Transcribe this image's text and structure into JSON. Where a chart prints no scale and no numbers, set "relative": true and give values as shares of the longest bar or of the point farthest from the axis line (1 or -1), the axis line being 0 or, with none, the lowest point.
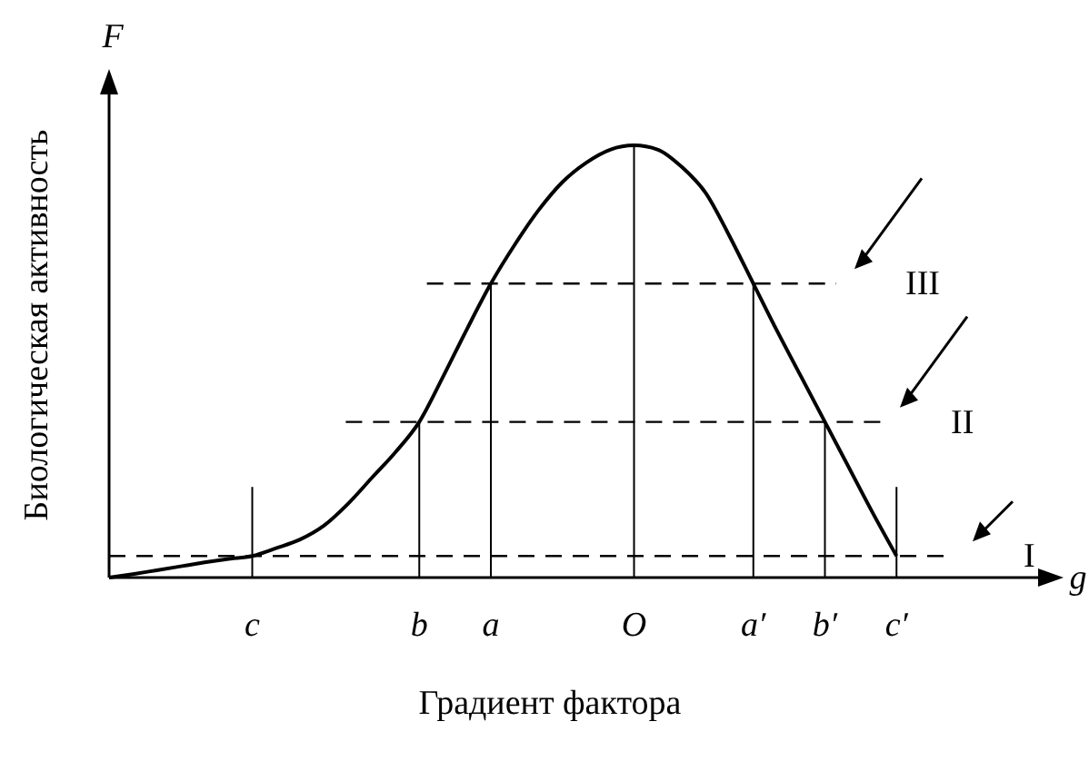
{
  "chart_data": {
    "type": "line",
    "relative": true,
    "xlabel": "Градиент фактора",
    "ylabel": "Биологическая активность",
    "categories": [
      null,
      null,
      null,
      null,
      null,
      null,
      "c",
      null,
      null,
      null,
      null,
      null,
      null,
      "b",
      null,
      null,
      "a",
      null,
      null,
      null,
      null,
      null,
      "O",
      null,
      null,
      null,
      null,
      "a′",
      null,
      null,
      "b′",
      null,
      null,
      "c′",
      null,
      null,
      null,
      null,
      null,
      null,
      null
    ],
    "series": [
      {
        "color": "#000000",
        "values": [
          0,
          0.008,
          0.017,
          0.026,
          0.035,
          0.043,
          0.05,
          0.068,
          0.088,
          0.12,
          0.17,
          0.23,
          0.29,
          0.36,
          0.465,
          0.575,
          0.68,
          0.77,
          0.85,
          0.915,
          0.96,
          0.99,
          1,
          0.99,
          0.95,
          0.89,
          0.79,
          0.68,
          0.57,
          0.465,
          0.36,
          0.255,
          0.15,
          0.05,
          null,
          null,
          null,
          null,
          null,
          null,
          null
        ]
      }
    ],
    "ref_lines": [
      {
        "axis": "y",
        "value": 0.05,
        "label": "I",
        "line_style": "dashed"
      },
      {
        "axis": "y",
        "value": 0.36,
        "label": "II",
        "line_style": "dashed"
      },
      {
        "axis": "y",
        "value": 0.68,
        "label": "III",
        "line_style": "dashed"
      },
      {
        "axis": "x",
        "value": "c"
      },
      {
        "axis": "x",
        "value": "b"
      },
      {
        "axis": "x",
        "value": "a"
      },
      {
        "axis": "x",
        "value": "O"
      },
      {
        "axis": "x",
        "value": "a′"
      },
      {
        "axis": "x",
        "value": "b′"
      },
      {
        "axis": "x",
        "value": "c′"
      }
    ],
    "annotations": [
      "F",
      "g"
    ],
    "grid": false,
    "legend": false,
    "marker": "none",
    "line_style": "solid"
  }
}
